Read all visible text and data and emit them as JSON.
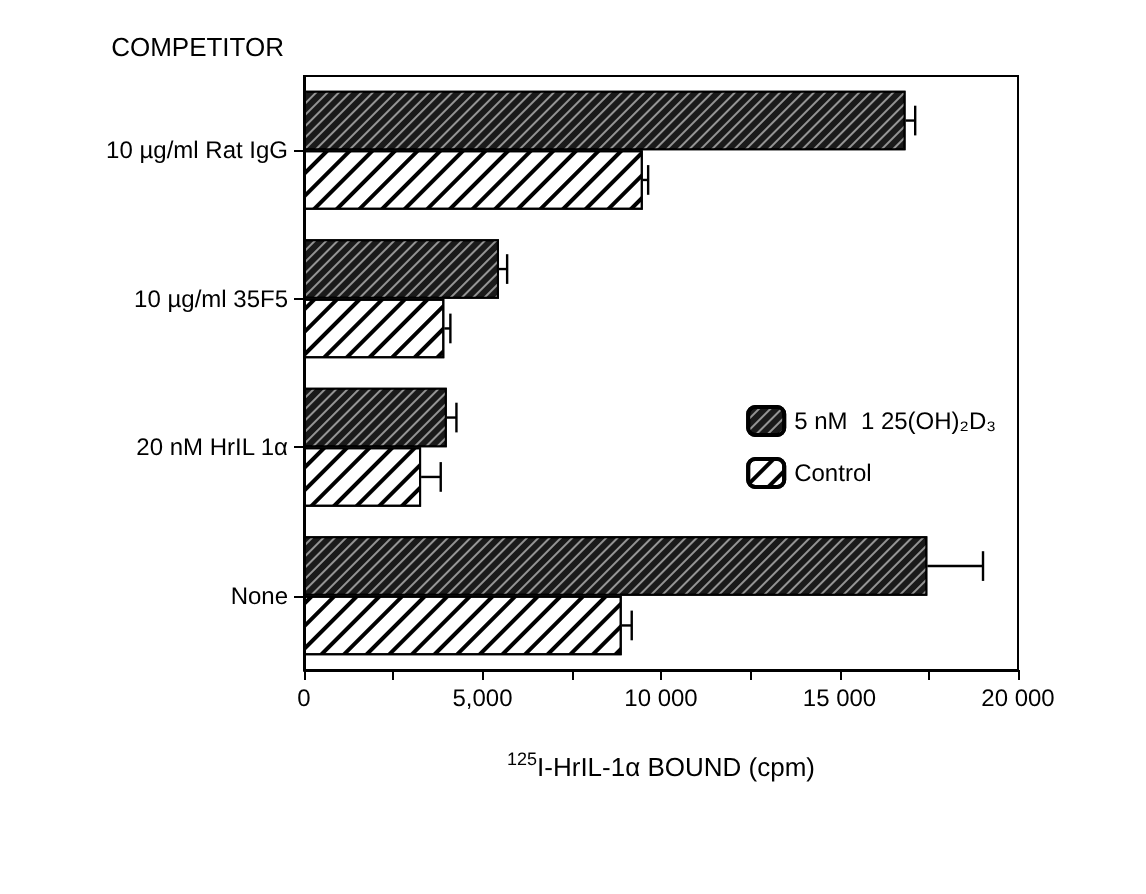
{
  "chart_data": {
    "type": "bar",
    "orientation": "horizontal",
    "ylabel": "COMPETITOR",
    "xlabel": "$^{125}$I-HrIL-1α BOUND (cpm)",
    "categories": [
      "10 µg/ml Rat IgG",
      "10 µg/ml 35F5",
      "20 nM HrIL 1α",
      "None"
    ],
    "series": [
      {
        "name": "5 nM  1 25(OH)₂D₃",
        "color": "#1a1a1a",
        "values": [
          16850,
          5460,
          4000,
          17460
        ],
        "errors": [
          [
            16850,
            17120
          ],
          [
            5460,
            5690
          ],
          [
            4000,
            4270
          ],
          [
            17460,
            19020
          ]
        ]
      },
      {
        "name": "Control",
        "color": "#ffffff",
        "values": [
          9490,
          3930,
          3280,
          8900
        ],
        "errors": [
          [
            9490,
            9640
          ],
          [
            3930,
            4100
          ],
          [
            3280,
            3830
          ],
          [
            8900,
            9180
          ]
        ]
      }
    ],
    "xlim": [
      0,
      20000
    ],
    "xticks": [
      {
        "value": 0,
        "label": "0"
      },
      {
        "value": 2500,
        "label": null
      },
      {
        "value": 5000,
        "label": "5,000"
      },
      {
        "value": 7500,
        "label": null
      },
      {
        "value": 10000,
        "label": "10 000"
      },
      {
        "value": 12500,
        "label": null
      },
      {
        "value": 15000,
        "label": "15 000"
      },
      {
        "value": 17500,
        "label": null
      },
      {
        "value": 20000,
        "label": "20 000"
      }
    ],
    "legend": "right",
    "grid": false
  }
}
